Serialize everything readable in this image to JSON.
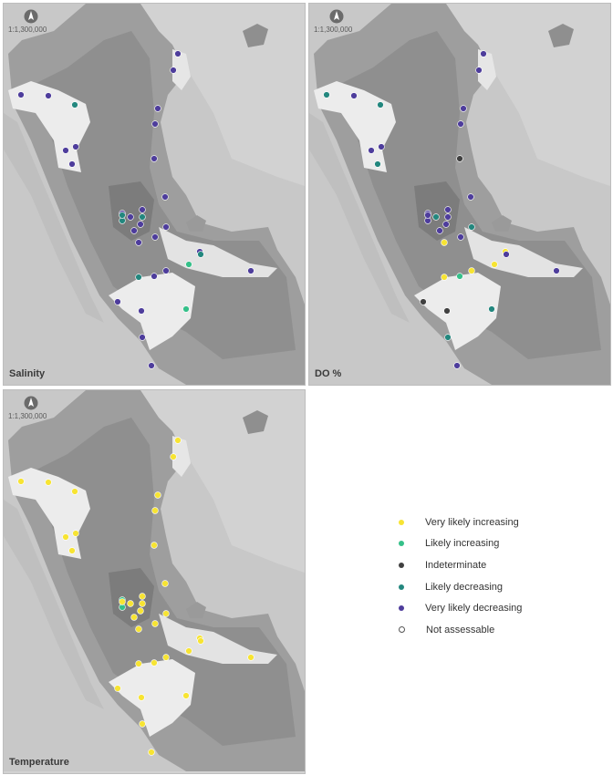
{
  "scale_label": "1:1,300,000",
  "panels": [
    {
      "title": "Salinity",
      "sites": [
        "vld",
        "vld",
        "vld",
        "ld",
        "vld",
        "vld",
        "vld",
        "vld",
        "vld",
        "vld",
        "vld",
        "vld",
        "vld",
        "vld",
        "vld",
        "ld",
        "ld",
        "ld",
        "vld",
        "vld",
        "vld",
        "vld",
        "vld",
        "li",
        "vld",
        "vld",
        "ld",
        "vld",
        "vld",
        "vld",
        "li",
        "vld",
        "vld",
        "vld",
        "ld"
      ]
    },
    {
      "title": "DO %",
      "sites": [
        "vld",
        "vld",
        "ld",
        "ld",
        "vld",
        "vld",
        "vld",
        "vld",
        "vld",
        "ld",
        "vld",
        "ind",
        "vld",
        "vld",
        "ld",
        "vld",
        "vld",
        "vld",
        "vld",
        "vld",
        "vld",
        "vli",
        "vli",
        "vli",
        "vli",
        "li",
        "vli",
        "vld",
        "ind",
        "ind",
        "ld",
        "ld",
        "vld",
        "ld",
        "vld"
      ]
    },
    {
      "title": "Temperature",
      "sites": [
        "vli",
        "vli",
        "vli",
        "vli",
        "vli",
        "vli",
        "vli",
        "vli",
        "vli",
        "vli",
        "li",
        "vli",
        "vli",
        "vli",
        "vli",
        "vli",
        "li",
        "vli",
        "vli",
        "vli",
        "vli",
        "vli",
        "vli",
        "vli",
        "vli",
        "vli",
        "vli",
        "vli",
        "vli",
        "vli",
        "vli",
        "vli",
        "vli",
        "vli",
        "vli"
      ]
    }
  ],
  "legend": [
    {
      "code": "vli",
      "label": "Very likely increasing",
      "color": "#f7e433"
    },
    {
      "code": "li",
      "label": "Likely increasing",
      "color": "#35c089"
    },
    {
      "code": "ind",
      "label": "Indeterminate",
      "color": "#404040"
    },
    {
      "code": "ld",
      "label": "Likely decreasing",
      "color": "#23877e"
    },
    {
      "code": "vld",
      "label": "Very likely decreasing",
      "color": "#4e3d9c"
    },
    {
      "code": "na",
      "label": "Not assessable",
      "color": "#ffffff"
    }
  ]
}
